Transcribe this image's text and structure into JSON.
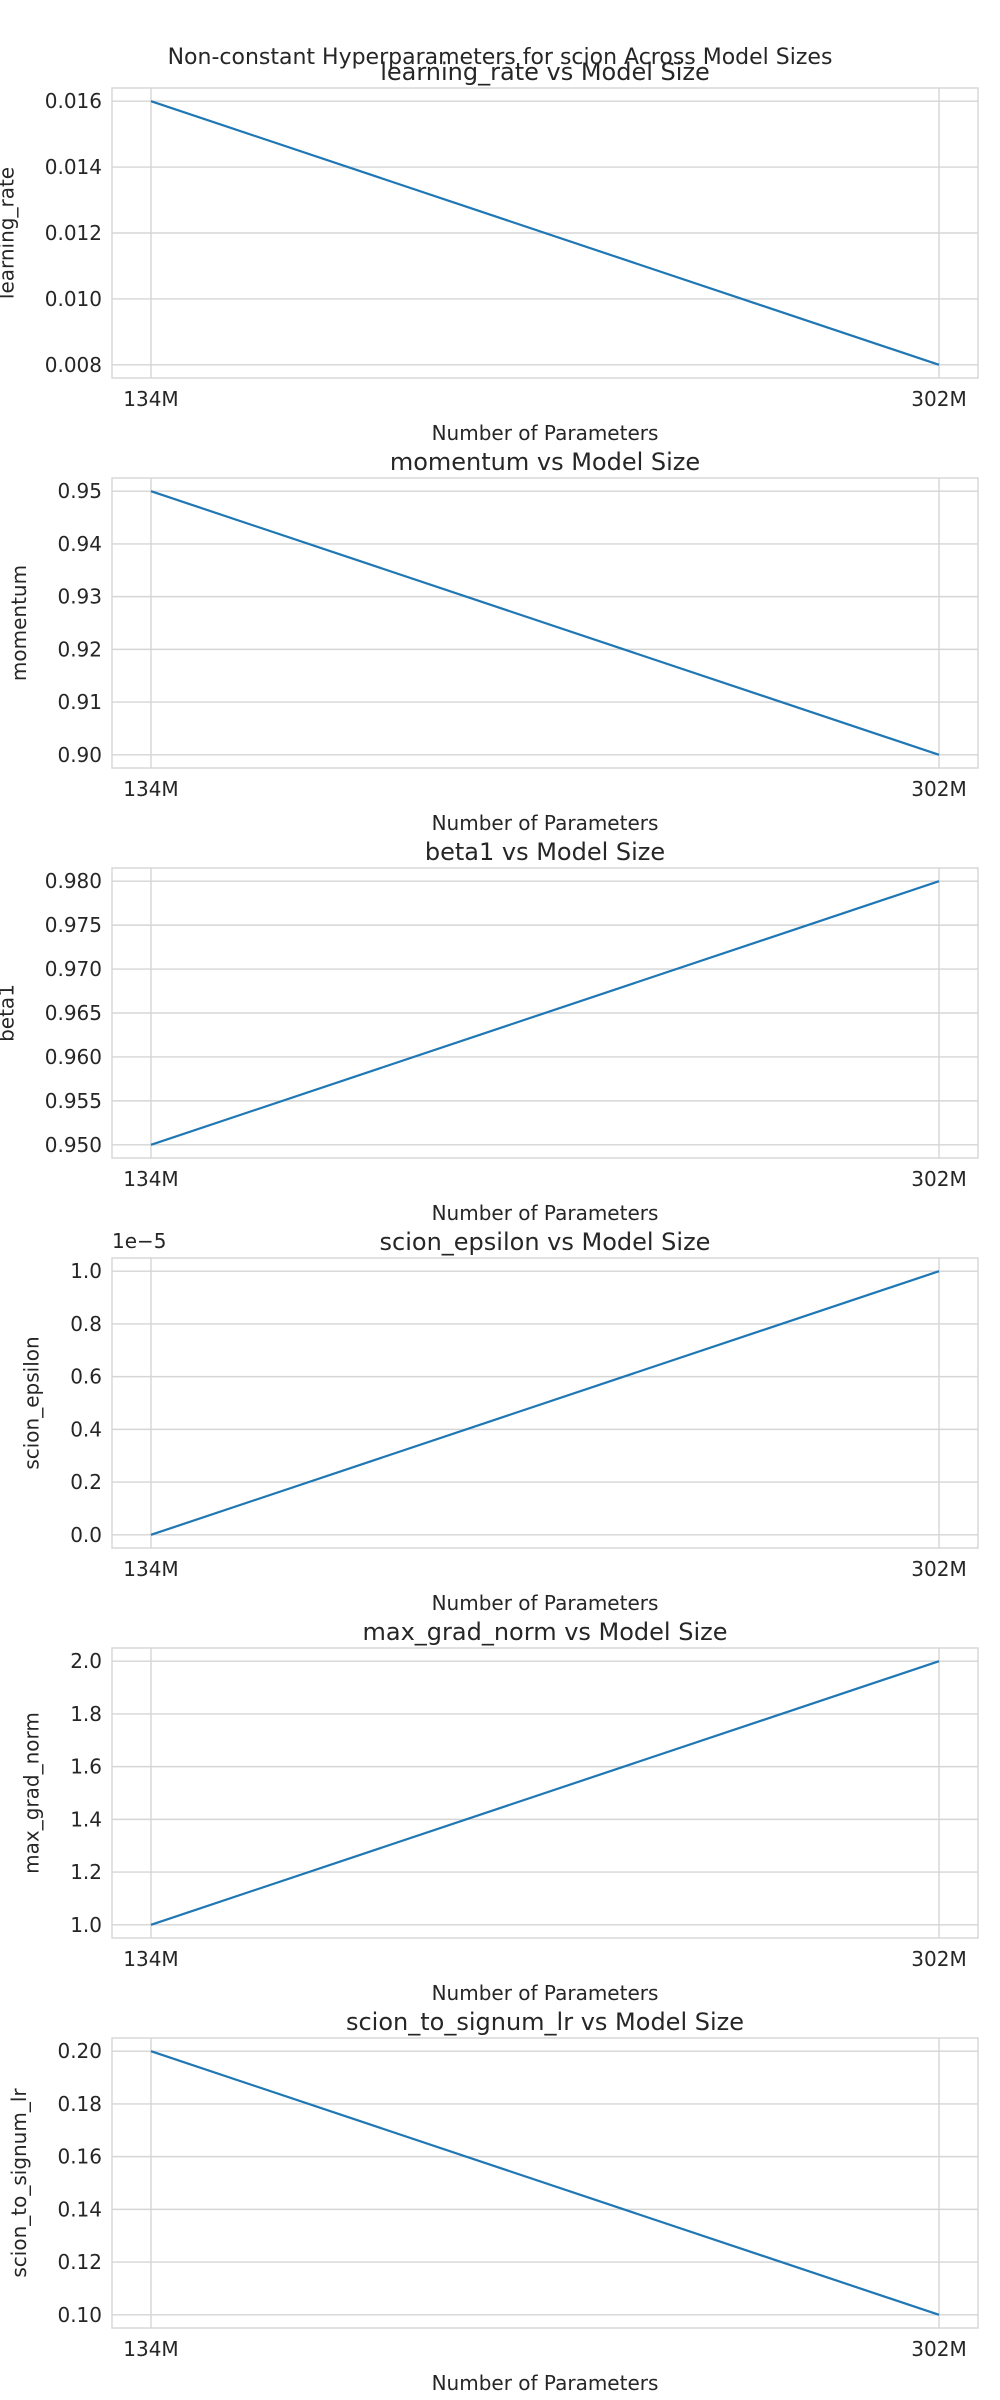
{
  "figure_title": "Non-constant Hyperparameters for scion Across Model Sizes",
  "colors": {
    "series": "#1f77b4",
    "grid": "#d5d5d5",
    "text": "#262626"
  },
  "chart_data": [
    {
      "type": "line",
      "title": "learning_rate vs Model Size",
      "xlabel": "Number of Parameters",
      "ylabel": "learning_rate",
      "categories": [
        "134M",
        "302M"
      ],
      "values": [
        0.016,
        0.008
      ],
      "ylim": [
        0.0076,
        0.0164
      ],
      "yticks": [
        0.008,
        0.01,
        0.012,
        0.014,
        0.016
      ],
      "ytick_labels": [
        "0.008",
        "0.010",
        "0.012",
        "0.014",
        "0.016"
      ],
      "offset_text": "",
      "grid": true
    },
    {
      "type": "line",
      "title": "momentum vs Model Size",
      "xlabel": "Number of Parameters",
      "ylabel": "momentum",
      "categories": [
        "134M",
        "302M"
      ],
      "values": [
        0.95,
        0.9
      ],
      "ylim": [
        0.8975,
        0.9525
      ],
      "yticks": [
        0.9,
        0.91,
        0.92,
        0.93,
        0.94,
        0.95
      ],
      "ytick_labels": [
        "0.90",
        "0.91",
        "0.92",
        "0.93",
        "0.94",
        "0.95"
      ],
      "offset_text": "",
      "grid": true
    },
    {
      "type": "line",
      "title": "beta1 vs Model Size",
      "xlabel": "Number of Parameters",
      "ylabel": "beta1",
      "categories": [
        "134M",
        "302M"
      ],
      "values": [
        0.95,
        0.98
      ],
      "ylim": [
        0.9485,
        0.9815
      ],
      "yticks": [
        0.95,
        0.955,
        0.96,
        0.965,
        0.97,
        0.975,
        0.98
      ],
      "ytick_labels": [
        "0.950",
        "0.955",
        "0.960",
        "0.965",
        "0.970",
        "0.975",
        "0.980"
      ],
      "offset_text": "",
      "grid": true
    },
    {
      "type": "line",
      "title": "scion_epsilon vs Model Size",
      "xlabel": "Number of Parameters",
      "ylabel": "scion_epsilon",
      "categories": [
        "134M",
        "302M"
      ],
      "values": [
        0.0,
        1.0
      ],
      "ylim": [
        -0.05,
        1.05
      ],
      "yticks": [
        0.0,
        0.2,
        0.4,
        0.6,
        0.8,
        1.0
      ],
      "ytick_labels": [
        "0.0",
        "0.2",
        "0.4",
        "0.6",
        "0.8",
        "1.0"
      ],
      "offset_text": "1e−5",
      "grid": true
    },
    {
      "type": "line",
      "title": "max_grad_norm vs Model Size",
      "xlabel": "Number of Parameters",
      "ylabel": "max_grad_norm",
      "categories": [
        "134M",
        "302M"
      ],
      "values": [
        1.0,
        2.0
      ],
      "ylim": [
        0.95,
        2.05
      ],
      "yticks": [
        1.0,
        1.2,
        1.4,
        1.6,
        1.8,
        2.0
      ],
      "ytick_labels": [
        "1.0",
        "1.2",
        "1.4",
        "1.6",
        "1.8",
        "2.0"
      ],
      "offset_text": "",
      "grid": true
    },
    {
      "type": "line",
      "title": "scion_to_signum_lr vs Model Size",
      "xlabel": "Number of Parameters",
      "ylabel": "scion_to_signum_lr",
      "categories": [
        "134M",
        "302M"
      ],
      "values": [
        0.2,
        0.1
      ],
      "ylim": [
        0.095,
        0.205
      ],
      "yticks": [
        0.1,
        0.12,
        0.14,
        0.16,
        0.18,
        0.2
      ],
      "ytick_labels": [
        "0.10",
        "0.12",
        "0.14",
        "0.16",
        "0.18",
        "0.20"
      ],
      "offset_text": "",
      "grid": true
    }
  ]
}
